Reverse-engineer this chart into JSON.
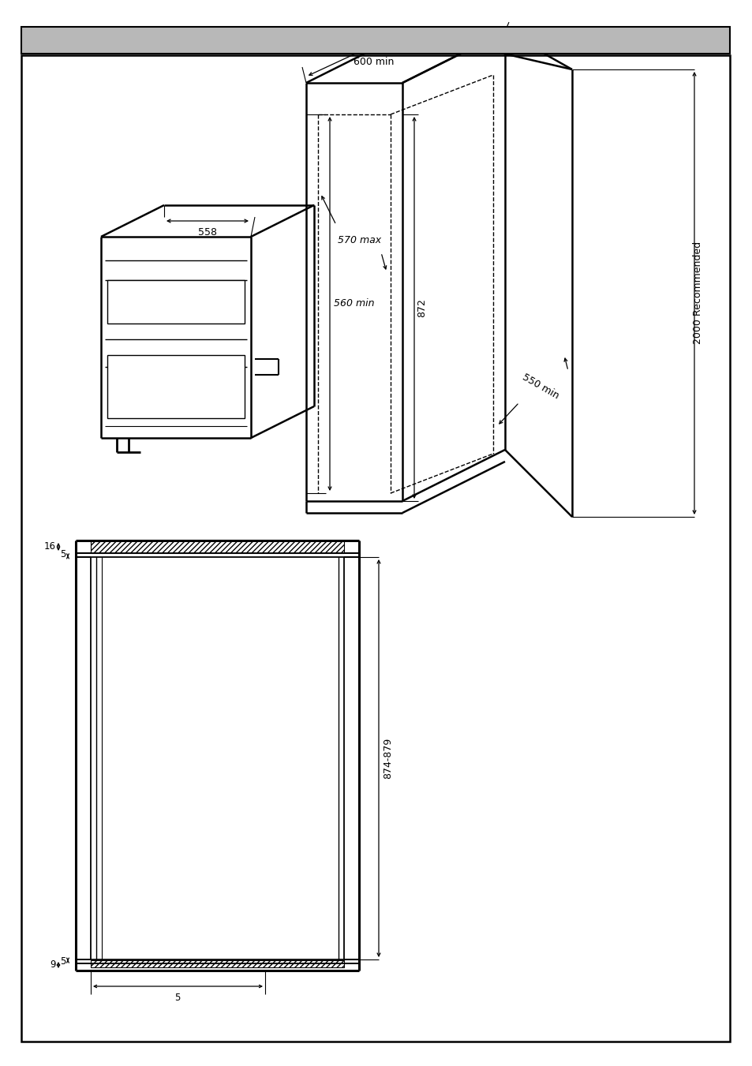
{
  "bg_color": "#ffffff",
  "header_color": "#b8b8b8",
  "labels": {
    "600min": "600 min",
    "560min": "560 min",
    "570max": "570 max",
    "550min": "550 min",
    "558": "558",
    "872": "872",
    "2000rec": "2000 Recommended",
    "874_879": "874-879",
    "16": "16",
    "5_top": "5",
    "9": "9",
    "5_bot": "5"
  }
}
